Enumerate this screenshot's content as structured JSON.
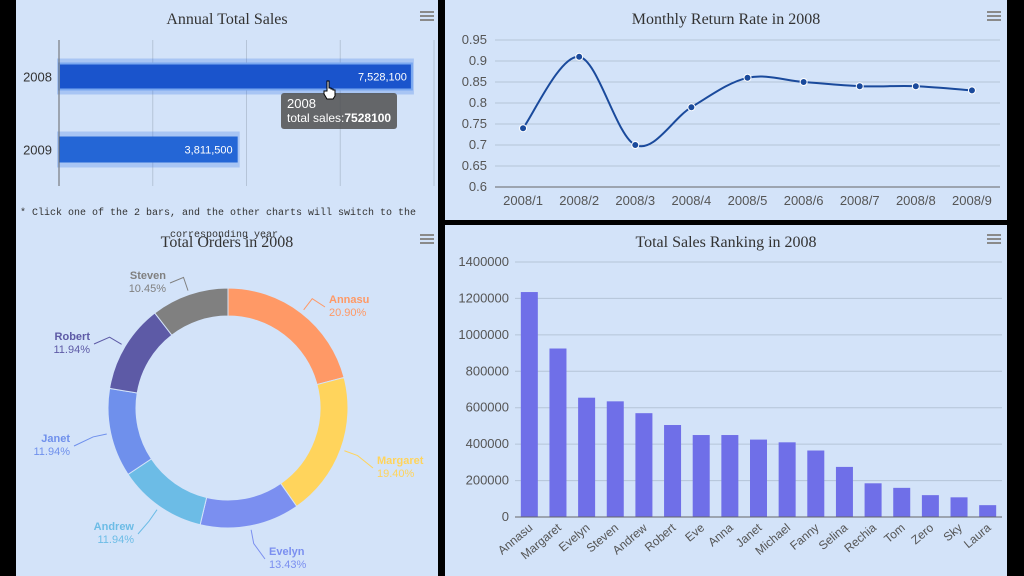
{
  "charts": {
    "annual": {
      "title": "Annual Total Sales",
      "note_line1": "* Click one of the 2 bars, and the other charts will switch to the",
      "note_line2": "corresponding year.",
      "tooltip": {
        "year": "2008",
        "label": "total sales:",
        "value": "7528100"
      }
    },
    "monthly": {
      "title": "Monthly Return Rate in 2008"
    },
    "orders": {
      "title": "Total Orders in 2008"
    },
    "ranking": {
      "title": "Total Sales Ranking in 2008"
    }
  },
  "chart_data": [
    {
      "type": "bar",
      "orientation": "horizontal",
      "title": "Annual Total Sales",
      "categories": [
        "2008",
        "2009"
      ],
      "values": [
        7528100,
        3811500
      ],
      "value_labels": [
        "7,528,100",
        "3,811,500"
      ],
      "xlim": [
        0,
        8000000
      ],
      "grid": true,
      "bar_color": "#1f5fd6"
    },
    {
      "type": "line",
      "title": "Monthly Return Rate in 2008",
      "x": [
        "2008/1",
        "2008/2",
        "2008/3",
        "2008/4",
        "2008/5",
        "2008/6",
        "2008/7",
        "2008/8",
        "2008/9"
      ],
      "values": [
        0.74,
        0.91,
        0.7,
        0.79,
        0.86,
        0.85,
        0.84,
        0.84,
        0.83
      ],
      "ylim": [
        0.6,
        0.95
      ],
      "y_ticks": [
        "0.6",
        "0.65",
        "0.7",
        "0.75",
        "0.8",
        "0.85",
        "0.9",
        "0.95"
      ],
      "smooth": true,
      "grid": true,
      "line_color": "#1a4a9c"
    },
    {
      "type": "pie",
      "variant": "donut",
      "title": "Total Orders in 2008",
      "slices": [
        {
          "name": "Annasu",
          "percent": "20.90%",
          "value": 20.9,
          "color": "#ff9966"
        },
        {
          "name": "Margaret",
          "percent": "19.40%",
          "value": 19.4,
          "color": "#ffd45c"
        },
        {
          "name": "Evelyn",
          "percent": "13.43%",
          "value": 13.43,
          "color": "#7b8ff0"
        },
        {
          "name": "Andrew",
          "percent": "11.94%",
          "value": 11.94,
          "color": "#6cbce6"
        },
        {
          "name": "Janet",
          "percent": "11.94%",
          "value": 11.94,
          "color": "#6f90ec"
        },
        {
          "name": "Robert",
          "percent": "11.94%",
          "value": 11.94,
          "color": "#5d5aa6"
        },
        {
          "name": "Steven",
          "percent": "10.45%",
          "value": 10.45,
          "color": "#808080"
        }
      ]
    },
    {
      "type": "bar",
      "title": "Total Sales Ranking in 2008",
      "categories": [
        "Annasu",
        "Margaret",
        "Evelyn",
        "Steven",
        "Andrew",
        "Robert",
        "Eve",
        "Anna",
        "Janet",
        "Michael",
        "Fanny",
        "Selina",
        "Rechia",
        "Tom",
        "Zero",
        "Sky",
        "Laura"
      ],
      "values": [
        1235000,
        925000,
        655000,
        635000,
        570000,
        505000,
        450000,
        450000,
        425000,
        410000,
        365000,
        275000,
        185000,
        160000,
        120000,
        108000,
        65000
      ],
      "ylim": [
        0,
        1400000
      ],
      "y_ticks": [
        "0",
        "200000",
        "400000",
        "600000",
        "800000",
        "1000000",
        "1200000",
        "1400000"
      ],
      "grid": true,
      "bar_color": "#6f6fe8"
    }
  ]
}
